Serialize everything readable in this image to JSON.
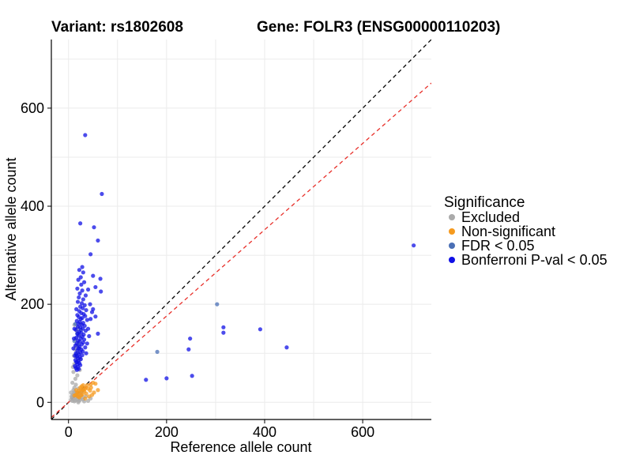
{
  "titles": {
    "variant": "Variant: rs1802608",
    "gene": "Gene: FOLR3 (ENSG00000110203)"
  },
  "chart_data": {
    "type": "scatter",
    "xlabel": "Reference allele count",
    "ylabel": "Alternative allele count",
    "xlim": [
      -35,
      740
    ],
    "ylim": [
      -35,
      740
    ],
    "xticks": [
      0,
      200,
      400,
      600
    ],
    "yticks": [
      0,
      200,
      400,
      600
    ],
    "grid": true,
    "reference_lines": [
      {
        "name": "identity",
        "slope": 1.0,
        "intercept": 0,
        "color": "#000000",
        "style": "dashed"
      },
      {
        "name": "expected-ratio",
        "slope": 0.88,
        "intercept": 0,
        "color": "#e8302a",
        "style": "dashed"
      }
    ],
    "legend": {
      "title": "Significance",
      "placement": "right",
      "entries": [
        {
          "label": "Excluded",
          "color": "#aaaaaa"
        },
        {
          "label": "Non-significant",
          "color": "#f59a1e"
        },
        {
          "label": "FDR < 0.05",
          "color": "#4a6fb5"
        },
        {
          "label": "Bonferroni P-val < 0.05",
          "color": "#1010e6"
        }
      ]
    },
    "series": [
      {
        "label": "Excluded",
        "color": "#aaaaaa",
        "points": [
          [
            5,
            5
          ],
          [
            8,
            3
          ],
          [
            10,
            8
          ],
          [
            12,
            2
          ],
          [
            15,
            10
          ],
          [
            18,
            6
          ],
          [
            20,
            12
          ],
          [
            6,
            12
          ],
          [
            9,
            15
          ],
          [
            14,
            4
          ],
          [
            22,
            8
          ],
          [
            25,
            14
          ],
          [
            11,
            18
          ],
          [
            16,
            20
          ],
          [
            19,
            16
          ],
          [
            13,
            22
          ],
          [
            7,
            9
          ],
          [
            24,
            5
          ],
          [
            28,
            10
          ],
          [
            10,
            25
          ],
          [
            21,
            3
          ],
          [
            17,
            13
          ],
          [
            26,
            18
          ],
          [
            30,
            6
          ],
          [
            12,
            30
          ],
          [
            15,
            36
          ],
          [
            8,
            40
          ],
          [
            20,
            28
          ],
          [
            14,
            48
          ],
          [
            18,
            55
          ],
          [
            10,
            62
          ],
          [
            16,
            70
          ],
          [
            12,
            78
          ],
          [
            20,
            85
          ],
          [
            15,
            92
          ],
          [
            18,
            100
          ],
          [
            13,
            108
          ],
          [
            16,
            115
          ],
          [
            20,
            122
          ],
          [
            14,
            130
          ],
          [
            22,
            138
          ],
          [
            17,
            145
          ],
          [
            19,
            152
          ],
          [
            12,
            158
          ],
          [
            24,
            160
          ],
          [
            20,
            102
          ],
          [
            11,
            95
          ],
          [
            25,
            88
          ],
          [
            9,
            72
          ],
          [
            23,
            66
          ],
          [
            40,
            3
          ],
          [
            32,
            2
          ],
          [
            45,
            8
          ],
          [
            35,
            12
          ],
          [
            20,
            0
          ],
          [
            5,
            20
          ],
          [
            30,
            25
          ],
          [
            27,
            22
          ]
        ]
      },
      {
        "label": "Non-significant",
        "color": "#f59a1e",
        "points": [
          [
            15,
            15
          ],
          [
            18,
            20
          ],
          [
            20,
            18
          ],
          [
            22,
            24
          ],
          [
            25,
            22
          ],
          [
            28,
            28
          ],
          [
            30,
            25
          ],
          [
            24,
            30
          ],
          [
            19,
            12
          ],
          [
            26,
            14
          ],
          [
            32,
            22
          ],
          [
            35,
            30
          ],
          [
            38,
            35
          ],
          [
            40,
            28
          ],
          [
            45,
            36
          ],
          [
            50,
            40
          ],
          [
            55,
            38
          ],
          [
            52,
            20
          ],
          [
            48,
            15
          ],
          [
            42,
            12
          ],
          [
            36,
            18
          ],
          [
            30,
            35
          ],
          [
            16,
            25
          ],
          [
            22,
            10
          ],
          [
            28,
            16
          ],
          [
            34,
            8
          ],
          [
            60,
            25
          ],
          [
            44,
            24
          ],
          [
            12,
            14
          ],
          [
            27,
            33
          ],
          [
            33,
            27
          ],
          [
            46,
            30
          ]
        ]
      },
      {
        "label": "FDR < 0.05",
        "color": "#4a6fb5",
        "points": [
          [
            303,
            200
          ],
          [
            181,
            103
          ],
          [
            12,
            125
          ],
          [
            18,
            140
          ],
          [
            14,
            160
          ],
          [
            25,
            148
          ],
          [
            20,
            118
          ],
          [
            16,
            98
          ],
          [
            22,
            110
          ],
          [
            17,
            82
          ]
        ]
      },
      {
        "label": "Bonferroni P-val < 0.05",
        "color": "#1010e6",
        "points": [
          [
            34,
            545
          ],
          [
            68,
            425
          ],
          [
            24,
            365
          ],
          [
            52,
            357
          ],
          [
            60,
            330
          ],
          [
            45,
            302
          ],
          [
            28,
            276
          ],
          [
            22,
            270
          ],
          [
            30,
            265
          ],
          [
            25,
            255
          ],
          [
            50,
            258
          ],
          [
            65,
            252
          ],
          [
            20,
            250
          ],
          [
            32,
            245
          ],
          [
            26,
            240
          ],
          [
            55,
            235
          ],
          [
            18,
            232
          ],
          [
            28,
            228
          ],
          [
            66,
            226
          ],
          [
            23,
            222
          ],
          [
            35,
            218
          ],
          [
            21,
            214
          ],
          [
            30,
            210
          ],
          [
            40,
            230
          ],
          [
            19,
            205
          ],
          [
            27,
            202
          ],
          [
            33,
            198
          ],
          [
            24,
            195
          ],
          [
            29,
            192
          ],
          [
            16,
            190
          ],
          [
            36,
            188
          ],
          [
            22,
            186
          ],
          [
            48,
            184
          ],
          [
            26,
            182
          ],
          [
            31,
            180
          ],
          [
            18,
            178
          ],
          [
            34,
            176
          ],
          [
            21,
            174
          ],
          [
            28,
            172
          ],
          [
            25,
            170
          ],
          [
            38,
            168
          ],
          [
            17,
            166
          ],
          [
            23,
            164
          ],
          [
            30,
            162
          ],
          [
            20,
            160
          ],
          [
            27,
            158
          ],
          [
            33,
            156
          ],
          [
            19,
            154
          ],
          [
            24,
            152
          ],
          [
            29,
            150
          ],
          [
            15,
            148
          ],
          [
            35,
            146
          ],
          [
            22,
            144
          ],
          [
            26,
            142
          ],
          [
            18,
            140
          ],
          [
            31,
            138
          ],
          [
            21,
            136
          ],
          [
            28,
            134
          ],
          [
            16,
            132
          ],
          [
            25,
            130
          ],
          [
            32,
            128
          ],
          [
            19,
            126
          ],
          [
            23,
            124
          ],
          [
            30,
            122
          ],
          [
            17,
            120
          ],
          [
            27,
            118
          ],
          [
            14,
            116
          ],
          [
            22,
            114
          ],
          [
            34,
            112
          ],
          [
            20,
            110
          ],
          [
            26,
            108
          ],
          [
            18,
            106
          ],
          [
            29,
            104
          ],
          [
            24,
            102
          ],
          [
            15,
            100
          ],
          [
            21,
            98
          ],
          [
            28,
            96
          ],
          [
            17,
            94
          ],
          [
            23,
            92
          ],
          [
            19,
            90
          ],
          [
            25,
            88
          ],
          [
            14,
            86
          ],
          [
            20,
            84
          ],
          [
            16,
            82
          ],
          [
            22,
            80
          ],
          [
            18,
            78
          ],
          [
            24,
            76
          ],
          [
            13,
            74
          ],
          [
            19,
            72
          ],
          [
            15,
            70
          ],
          [
            21,
            68
          ],
          [
            17,
            66
          ],
          [
            40,
            150
          ],
          [
            45,
            170
          ],
          [
            42,
            135
          ],
          [
            38,
            120
          ],
          [
            44,
            200
          ],
          [
            50,
            190
          ],
          [
            36,
            100
          ],
          [
            60,
            140
          ],
          [
            55,
            175
          ],
          [
            12,
            150
          ],
          [
            11,
            130
          ],
          [
            10,
            110
          ],
          [
            13,
            95
          ],
          [
            158,
            46
          ],
          [
            200,
            49
          ],
          [
            252,
            54
          ],
          [
            248,
            130
          ],
          [
            245,
            108
          ],
          [
            316,
            153
          ],
          [
            316,
            142
          ],
          [
            391,
            149
          ],
          [
            445,
            112
          ],
          [
            704,
            320
          ]
        ]
      }
    ]
  }
}
